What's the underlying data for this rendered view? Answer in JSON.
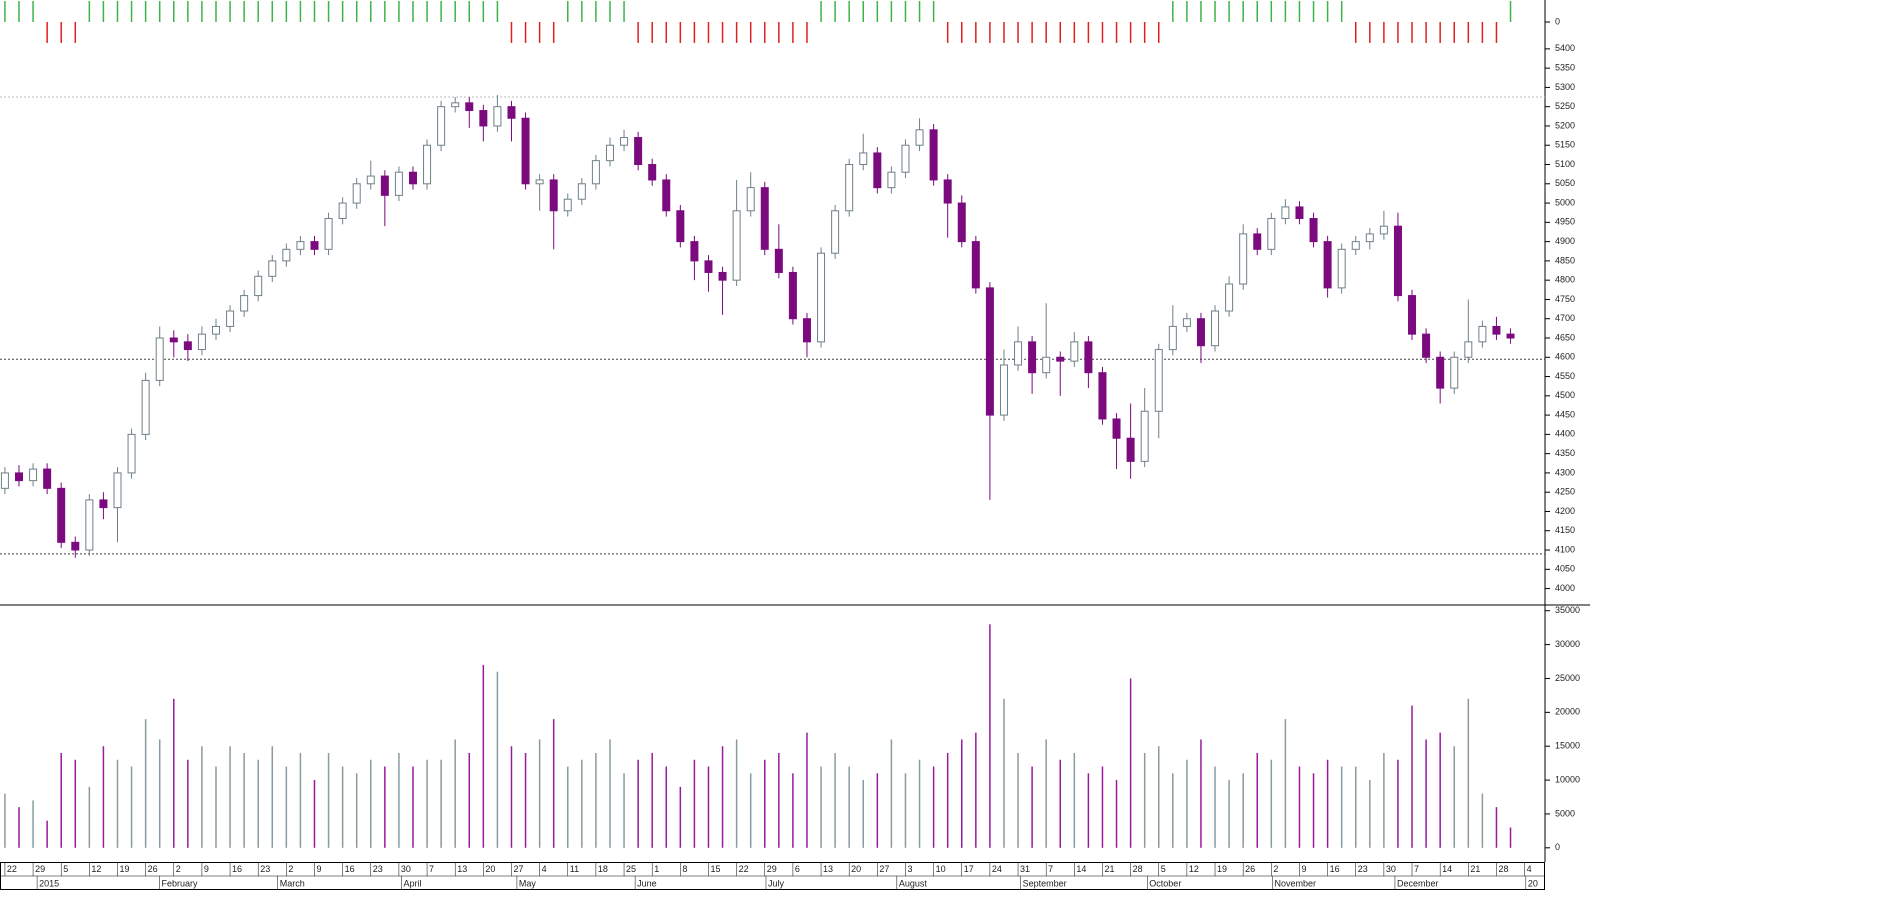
{
  "chart_data": [
    {
      "type": "bar",
      "values": [
        1,
        1,
        1,
        -1,
        -1,
        -1,
        1,
        1,
        1,
        1,
        1,
        1,
        1,
        1,
        1,
        1,
        1,
        1,
        1,
        1,
        1,
        1,
        1,
        1,
        1,
        1,
        1,
        1,
        1,
        1,
        1,
        1,
        1,
        1,
        1,
        1,
        -1,
        -1,
        -1,
        -1,
        1,
        1,
        1,
        1,
        1,
        -1,
        -1,
        -1,
        -1,
        -1,
        -1,
        -1,
        -1,
        -1,
        -1,
        -1,
        -1,
        -1,
        1,
        1,
        1,
        1,
        1,
        1,
        1,
        1,
        1,
        -1,
        -1,
        -1,
        -1,
        -1,
        -1,
        -1,
        -1,
        -1,
        -1,
        -1,
        -1,
        -1,
        -1,
        -1,
        -1,
        1,
        1,
        1,
        1,
        1,
        1,
        1,
        1,
        1,
        1,
        1,
        1,
        1,
        -1,
        -1,
        -1,
        -1,
        -1,
        -1,
        -1,
        -1,
        -1,
        -1,
        -1,
        1
      ],
      "up_color": "#3cb34a",
      "down_color": "#e02020",
      "ylim": [
        -1.05,
        1.05
      ],
      "yticks": [
        0
      ]
    },
    {
      "type": "candlestick",
      "open": [
        4260,
        4300,
        4280,
        4310,
        4260,
        4120,
        4100,
        4230,
        4210,
        4300,
        4400,
        4540,
        4650,
        4640,
        4620,
        4660,
        4680,
        4720,
        4760,
        4810,
        4850,
        4880,
        4900,
        4880,
        4960,
        5000,
        5050,
        5070,
        5020,
        5080,
        5050,
        5150,
        5250,
        5260,
        5240,
        5200,
        5250,
        5220,
        5050,
        5060,
        4980,
        5010,
        5050,
        5110,
        5150,
        5170,
        5100,
        5060,
        4980,
        4900,
        4850,
        4820,
        4800,
        4980,
        5040,
        4880,
        4820,
        4700,
        4640,
        4870,
        4980,
        5100,
        5130,
        5040,
        5080,
        5150,
        5190,
        5060,
        5000,
        4900,
        4780,
        4450,
        4580,
        4640,
        4560,
        4600,
        4590,
        4640,
        4560,
        4440,
        4390,
        4330,
        4460,
        4620,
        4680,
        4700,
        4630,
        4720,
        4790,
        4920,
        4880,
        4960,
        4990,
        4960,
        4900,
        4780,
        4880,
        4900,
        4920,
        4940,
        4760,
        4660,
        4600,
        4520,
        4600,
        4640,
        4680,
        4660
      ],
      "high": [
        4315,
        4320,
        4325,
        4325,
        4275,
        4135,
        4245,
        4250,
        4315,
        4415,
        4560,
        4680,
        4670,
        4660,
        4680,
        4700,
        4735,
        4775,
        4825,
        4865,
        4895,
        4915,
        4915,
        4975,
        5015,
        5065,
        5110,
        5085,
        5095,
        5095,
        5165,
        5265,
        5275,
        5275,
        5255,
        5280,
        5265,
        5235,
        5075,
        5075,
        5025,
        5065,
        5125,
        5170,
        5190,
        5185,
        5115,
        5075,
        4995,
        4915,
        4865,
        4835,
        5060,
        5080,
        5055,
        4945,
        4835,
        4715,
        4885,
        4995,
        5115,
        5180,
        5145,
        5095,
        5165,
        5220,
        5205,
        5075,
        5020,
        4915,
        4795,
        4620,
        4680,
        4655,
        4740,
        4615,
        4665,
        4655,
        4575,
        4455,
        4480,
        4520,
        4635,
        4735,
        4715,
        4715,
        4735,
        4810,
        4945,
        4935,
        4975,
        5010,
        5005,
        4975,
        4915,
        4895,
        4915,
        4935,
        4980,
        4975,
        4775,
        4675,
        4615,
        4615,
        4750,
        4695,
        4705,
        4675
      ],
      "low": [
        4245,
        4265,
        4265,
        4245,
        4105,
        4080,
        4085,
        4180,
        4120,
        4285,
        4385,
        4525,
        4600,
        4590,
        4605,
        4645,
        4665,
        4705,
        4745,
        4795,
        4835,
        4865,
        4865,
        4865,
        4945,
        4985,
        5035,
        4940,
        5005,
        5035,
        5035,
        5135,
        5235,
        5195,
        5160,
        5185,
        5160,
        5035,
        4980,
        4880,
        4965,
        4995,
        5035,
        5095,
        5135,
        5085,
        5045,
        4965,
        4885,
        4800,
        4770,
        4710,
        4785,
        4965,
        4865,
        4805,
        4685,
        4600,
        4625,
        4855,
        4965,
        5085,
        5025,
        5025,
        5065,
        5135,
        5045,
        4910,
        4885,
        4765,
        4230,
        4435,
        4565,
        4505,
        4545,
        4500,
        4575,
        4520,
        4425,
        4310,
        4285,
        4315,
        4390,
        4605,
        4665,
        4585,
        4615,
        4705,
        4775,
        4865,
        4865,
        4945,
        4945,
        4885,
        4755,
        4765,
        4865,
        4880,
        4905,
        4745,
        4645,
        4585,
        4480,
        4505,
        4585,
        4625,
        4645,
        4635
      ],
      "close": [
        4300,
        4280,
        4310,
        4260,
        4120,
        4100,
        4230,
        4210,
        4300,
        4400,
        4540,
        4650,
        4640,
        4620,
        4660,
        4680,
        4720,
        4760,
        4810,
        4850,
        4880,
        4900,
        4880,
        4960,
        5000,
        5050,
        5070,
        5020,
        5080,
        5050,
        5150,
        5250,
        5260,
        5240,
        5200,
        5250,
        5220,
        5050,
        5060,
        4980,
        5010,
        5050,
        5110,
        5150,
        5170,
        5100,
        5060,
        4980,
        4900,
        4850,
        4820,
        4800,
        4980,
        5040,
        4880,
        4820,
        4700,
        4640,
        4870,
        4980,
        5100,
        5130,
        5040,
        5080,
        5150,
        5190,
        5060,
        5000,
        4900,
        4780,
        4450,
        4580,
        4640,
        4560,
        4600,
        4590,
        4640,
        4560,
        4440,
        4390,
        4330,
        4460,
        4620,
        4680,
        4700,
        4630,
        4720,
        4790,
        4920,
        4880,
        4960,
        4990,
        4960,
        4900,
        4780,
        4880,
        4900,
        4920,
        4940,
        4760,
        4660,
        4600,
        4520,
        4600,
        4640,
        4680,
        4660,
        4650
      ],
      "up_color": "#ffffff",
      "down_color": "#7a0a7e",
      "edge_color": "#6f8088",
      "hlines": [
        4090,
        4595,
        5275
      ],
      "xlim": [
        -0.35,
        109.45
      ],
      "ylim": [
        3960,
        5410
      ],
      "yticks": [
        4000,
        4050,
        4100,
        4150,
        4200,
        4250,
        4300,
        4350,
        4400,
        4450,
        4500,
        4550,
        4600,
        4650,
        4700,
        4750,
        4800,
        4850,
        4900,
        4950,
        5000,
        5050,
        5100,
        5150,
        5200,
        5250,
        5300,
        5350,
        5400
      ],
      "xticks": [
        {
          "value": 0,
          "label": "22"
        },
        {
          "value": 2,
          "label": "29"
        },
        {
          "value": 4,
          "label": "5"
        },
        {
          "value": 6,
          "label": "12"
        },
        {
          "value": 8,
          "label": "19"
        },
        {
          "value": 10,
          "label": "26"
        },
        {
          "value": 12,
          "label": "2"
        },
        {
          "value": 14,
          "label": "9"
        },
        {
          "value": 16,
          "label": "16"
        },
        {
          "value": 18,
          "label": "23"
        },
        {
          "value": 20,
          "label": "2"
        },
        {
          "value": 22,
          "label": "9"
        },
        {
          "value": 24,
          "label": "16"
        },
        {
          "value": 26,
          "label": "23"
        },
        {
          "value": 28,
          "label": "30"
        },
        {
          "value": 30,
          "label": "7"
        },
        {
          "value": 32,
          "label": "13"
        },
        {
          "value": 34,
          "label": "20"
        },
        {
          "value": 36,
          "label": "27"
        },
        {
          "value": 38,
          "label": "4"
        },
        {
          "value": 40,
          "label": "11"
        },
        {
          "value": 42,
          "label": "18"
        },
        {
          "value": 44,
          "label": "25"
        },
        {
          "value": 46,
          "label": "1"
        },
        {
          "value": 48,
          "label": "8"
        },
        {
          "value": 50,
          "label": "15"
        },
        {
          "value": 52,
          "label": "22"
        },
        {
          "value": 54,
          "label": "29"
        },
        {
          "value": 56,
          "label": "6"
        },
        {
          "value": 58,
          "label": "13"
        },
        {
          "value": 60,
          "label": "20"
        },
        {
          "value": 62,
          "label": "27"
        },
        {
          "value": 64,
          "label": "3"
        },
        {
          "value": 66,
          "label": "10"
        },
        {
          "value": 68,
          "label": "17"
        },
        {
          "value": 70,
          "label": "24"
        },
        {
          "value": 72,
          "label": "31"
        },
        {
          "value": 74,
          "label": "7"
        },
        {
          "value": 76,
          "label": "14"
        },
        {
          "value": 78,
          "label": "21"
        },
        {
          "value": 80,
          "label": "28"
        },
        {
          "value": 82,
          "label": "5"
        },
        {
          "value": 84,
          "label": "12"
        },
        {
          "value": 86,
          "label": "19"
        },
        {
          "value": 88,
          "label": "26"
        },
        {
          "value": 90,
          "label": "2"
        },
        {
          "value": 92,
          "label": "9"
        },
        {
          "value": 94,
          "label": "16"
        },
        {
          "value": 96,
          "label": "23"
        },
        {
          "value": 98,
          "label": "30"
        },
        {
          "value": 100,
          "label": "7"
        },
        {
          "value": 102,
          "label": "14"
        },
        {
          "value": 104,
          "label": "21"
        },
        {
          "value": 106,
          "label": "28"
        },
        {
          "value": 108,
          "label": "4"
        }
      ],
      "month_ticks": [
        {
          "value": 2.5,
          "label": "2015"
        },
        {
          "value": 11.2,
          "label": "February"
        },
        {
          "value": 19.6,
          "label": "March"
        },
        {
          "value": 28.4,
          "label": "April"
        },
        {
          "value": 36.6,
          "label": "May"
        },
        {
          "value": 45,
          "label": "June"
        },
        {
          "value": 54.3,
          "label": "July"
        },
        {
          "value": 63.6,
          "label": "August"
        },
        {
          "value": 72.4,
          "label": "September"
        },
        {
          "value": 81.4,
          "label": "October"
        },
        {
          "value": 90.3,
          "label": "November"
        },
        {
          "value": 99,
          "label": "December"
        },
        {
          "value": 108.3,
          "label": "20"
        }
      ]
    },
    {
      "type": "volume",
      "values": [
        8000,
        6000,
        7000,
        4000,
        14000,
        13000,
        9000,
        15000,
        13000,
        12000,
        19000,
        16000,
        22000,
        13000,
        15000,
        12000,
        15000,
        14000,
        13000,
        15000,
        12000,
        14000,
        10000,
        14000,
        12000,
        11000,
        13000,
        12000,
        14000,
        12000,
        13000,
        13000,
        16000,
        14000,
        27000,
        26000,
        15000,
        14000,
        16000,
        19000,
        12000,
        13000,
        14000,
        16000,
        11000,
        13000,
        14000,
        12000,
        9000,
        13000,
        12000,
        15000,
        16000,
        11000,
        13000,
        14000,
        11000,
        17000,
        12000,
        14000,
        12000,
        10000,
        11000,
        16000,
        11000,
        13000,
        12000,
        14000,
        16000,
        17000,
        33000,
        22000,
        14000,
        12000,
        16000,
        13000,
        14000,
        11000,
        12000,
        10000,
        25000,
        14000,
        15000,
        11000,
        13000,
        16000,
        12000,
        10000,
        11000,
        14000,
        13000,
        19000,
        12000,
        11000,
        13000,
        12000,
        12000,
        10000,
        14000,
        13000,
        21000,
        16000,
        17000,
        15000,
        22000,
        8000,
        6000,
        3000
      ],
      "up_color": "#8a9aa0",
      "down_color": "#9a1a9e",
      "ylim": [
        -1800,
        35700
      ],
      "yticks": [
        0,
        5000,
        10000,
        15000,
        20000,
        25000,
        30000,
        35000
      ]
    }
  ]
}
